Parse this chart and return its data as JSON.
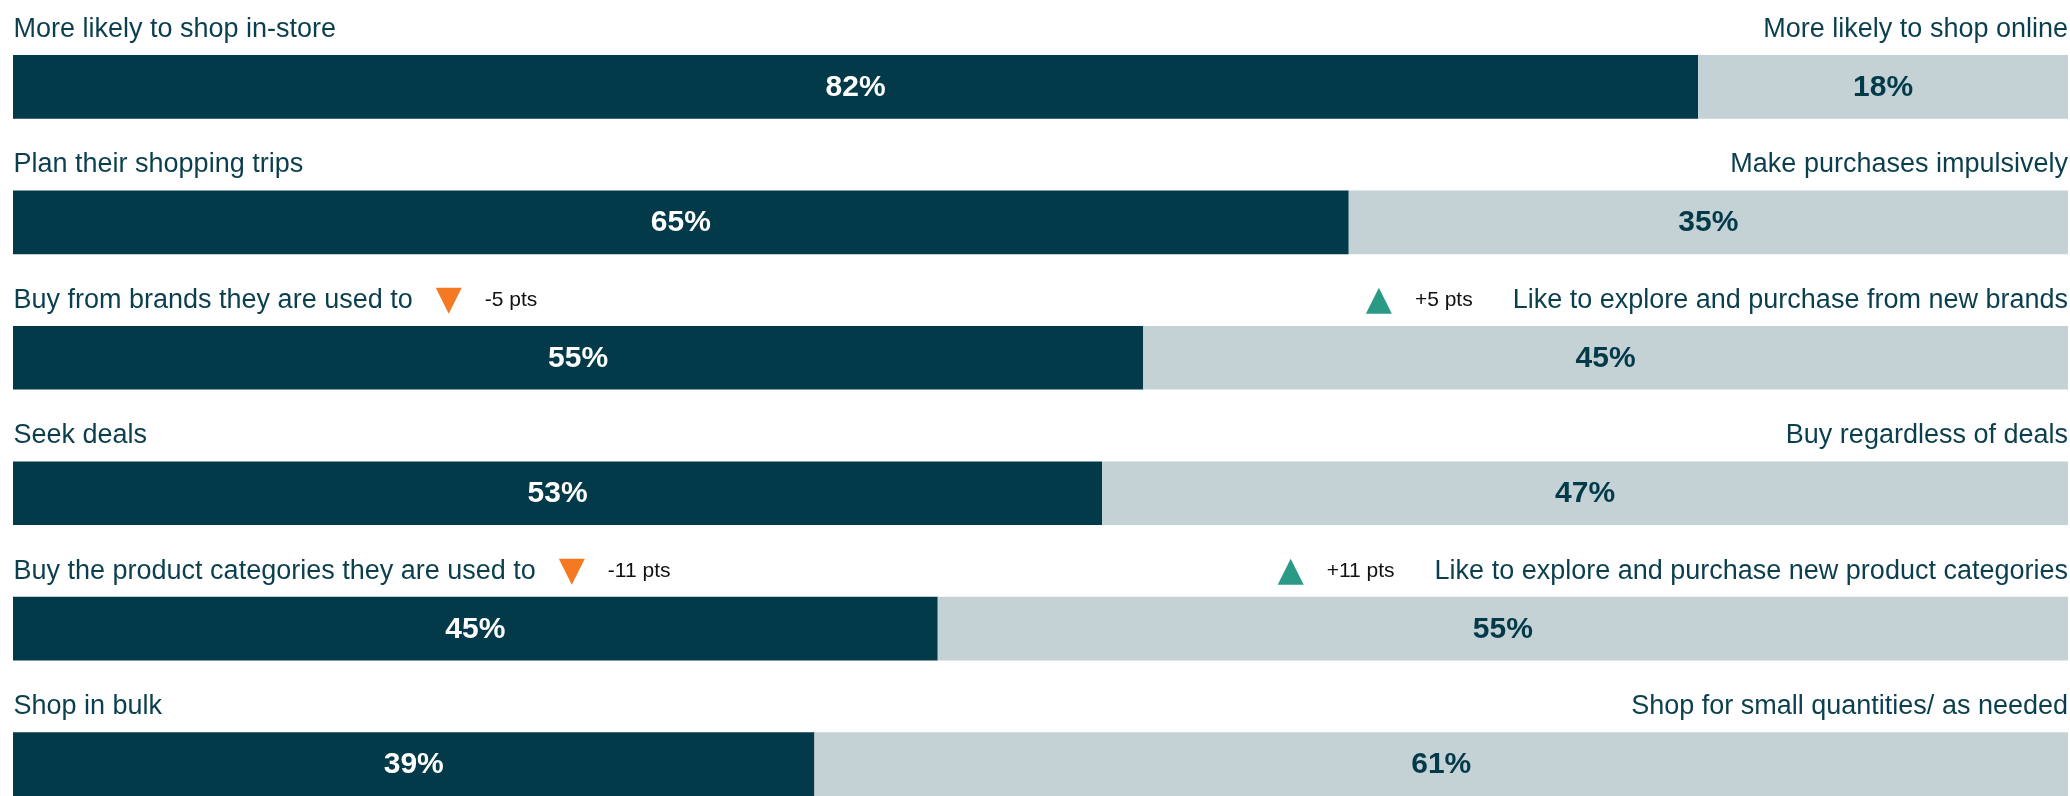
{
  "chart_data": {
    "type": "bar",
    "orientation": "horizontal",
    "stacked": true,
    "categories": [
      "More likely to shop in-store",
      "Plan their shopping trips",
      "Buy from brands they are used to",
      "Seek deals",
      "Buy the product categories they are used to",
      "Shop in bulk"
    ],
    "series": [
      {
        "color": "#033a4a",
        "values": [
          82,
          65,
          55,
          53,
          45,
          39
        ],
        "value_labels": [
          "82%",
          "65%",
          "55%",
          "53%",
          "45%",
          "39%"
        ]
      },
      {
        "color": "#c4d2d6",
        "values": [
          18,
          35,
          45,
          47,
          55,
          61
        ],
        "value_labels": [
          "18%",
          "35%",
          "45%",
          "47%",
          "55%",
          "61%"
        ]
      }
    ],
    "annotations": [
      "More likely to shop online",
      "Make purchases impulsively",
      "-5 pts",
      "+5 pts",
      "Like to explore and purchase from new brands",
      "Buy regardless of deals",
      "-11 pts",
      "+11 pts",
      "Like to explore and purchase new product categories",
      "Shop for small quantities/ as needed"
    ]
  }
}
